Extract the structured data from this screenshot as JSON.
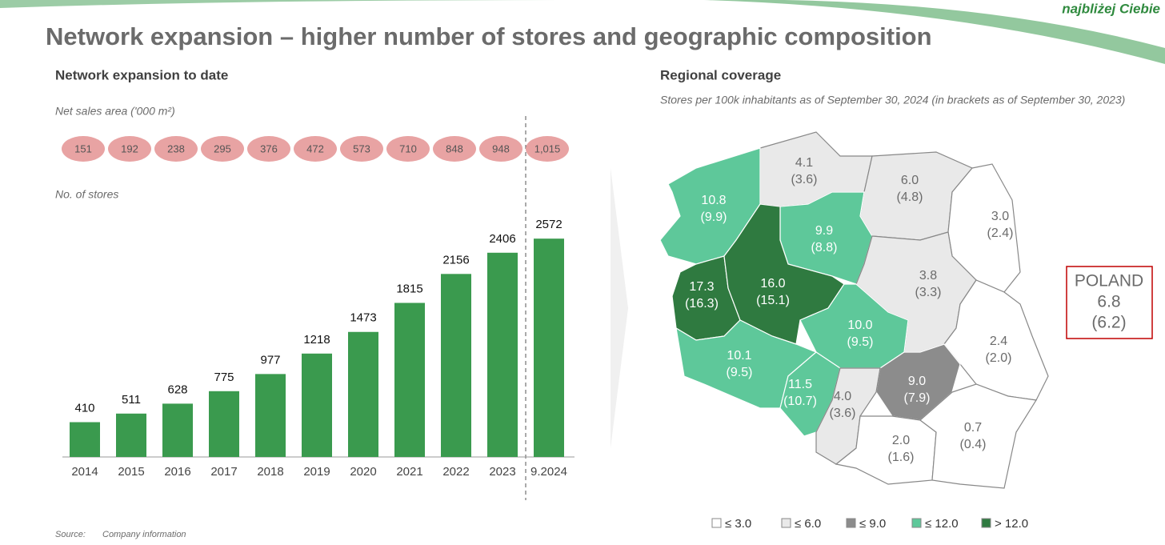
{
  "title": "Network expansion – higher number of stores and geographic composition",
  "logo_text": "najbliżej Ciebie",
  "left": {
    "title": "Network expansion to date",
    "sales_area_label": "Net sales area ('000 m²)",
    "stores_label": "No. of stores",
    "sales_area": {
      "values": [
        151,
        192,
        238,
        295,
        376,
        472,
        573,
        710,
        848,
        948,
        1015
      ],
      "value_labels": [
        "151",
        "192",
        "238",
        "295",
        "376",
        "472",
        "573",
        "710",
        "848",
        "948",
        "1,015"
      ],
      "color": "#e8a3a3"
    }
  },
  "chart_data": {
    "type": "bar",
    "categories": [
      "2014",
      "2015",
      "2016",
      "2017",
      "2018",
      "2019",
      "2020",
      "2021",
      "2022",
      "2023",
      "9.2024"
    ],
    "values": [
      410,
      511,
      628,
      775,
      977,
      1218,
      1473,
      1815,
      2156,
      2406,
      2572
    ],
    "color": "#3a9a4e",
    "ylim": [
      0,
      2800
    ]
  },
  "map": {
    "title": "Regional coverage",
    "subtitle": "Stores per 100k inhabitants as of September 30, 2024 (in brackets as of September 30, 2023)",
    "regions": [
      {
        "value": 4.1,
        "value_label": "4.1",
        "previous": 3.6,
        "previous_label": "(3.6)"
      },
      {
        "value": 6.0,
        "value_label": "6.0",
        "previous": 4.8,
        "previous_label": "(4.8)"
      },
      {
        "value": 3.0,
        "value_label": "3.0",
        "previous": 2.4,
        "previous_label": "(2.4)"
      },
      {
        "value": 10.8,
        "value_label": "10.8",
        "previous": 9.9,
        "previous_label": "(9.9)"
      },
      {
        "value": 9.9,
        "value_label": "9.9",
        "previous": 8.8,
        "previous_label": "(8.8)"
      },
      {
        "value": 3.8,
        "value_label": "3.8",
        "previous": 3.3,
        "previous_label": "(3.3)"
      },
      {
        "value": 17.3,
        "value_label": "17.3",
        "previous": 16.3,
        "previous_label": "(16.3)"
      },
      {
        "value": 16.0,
        "value_label": "16.0",
        "previous": 15.1,
        "previous_label": "(15.1)"
      },
      {
        "value": 10.0,
        "value_label": "10.0",
        "previous": 9.5,
        "previous_label": "(9.5)"
      },
      {
        "value": 2.4,
        "value_label": "2.4",
        "previous": 2.0,
        "previous_label": "(2.0)"
      },
      {
        "value": 10.1,
        "value_label": "10.1",
        "previous": 9.5,
        "previous_label": "(9.5)"
      },
      {
        "value": 11.5,
        "value_label": "11.5",
        "previous": 10.7,
        "previous_label": "(10.7)"
      },
      {
        "value": 9.0,
        "value_label": "9.0",
        "previous": 7.9,
        "previous_label": "(7.9)"
      },
      {
        "value": 4.0,
        "value_label": "4.0",
        "previous": 3.6,
        "previous_label": "(3.6)"
      },
      {
        "value": 2.0,
        "value_label": "2.0",
        "previous": 1.6,
        "previous_label": "(1.6)"
      },
      {
        "value": 0.7,
        "value_label": "0.7",
        "previous": 0.4,
        "previous_label": "(0.4)"
      }
    ],
    "total": {
      "name": "POLAND",
      "value": 6.8,
      "value_label": "6.8",
      "previous": 6.2,
      "previous_label": "(6.2)"
    },
    "legend": [
      {
        "label": "≤ 3.0",
        "max": 3.0,
        "color": "#ffffff"
      },
      {
        "label": "≤ 6.0",
        "max": 6.0,
        "color": "#e9e9e9"
      },
      {
        "label": "≤ 9.0",
        "max": 9.0,
        "color": "#8c8c8c"
      },
      {
        "label": "≤ 12.0",
        "max": 12.0,
        "color": "#5ec89a"
      },
      {
        "label": "> 12.0",
        "min": 12.0,
        "color": "#2f7a40"
      }
    ]
  },
  "source": {
    "label": "Source:",
    "text": "Company information"
  }
}
